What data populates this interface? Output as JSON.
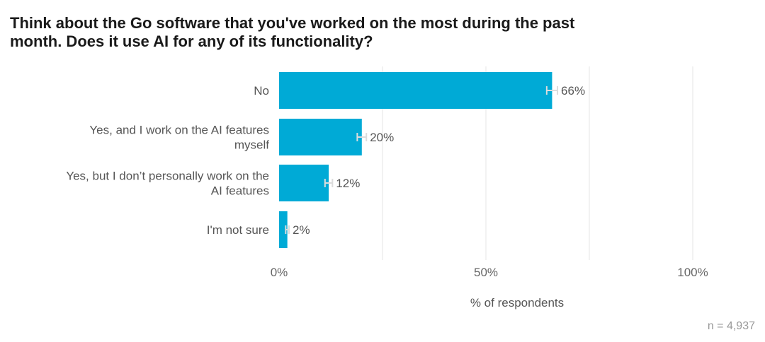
{
  "chart_data": {
    "type": "bar",
    "orientation": "horizontal",
    "title_lines": [
      "Think about the Go software that you've worked on the most during the past",
      "month. Does it use AI for any of its functionality?"
    ],
    "categories": [
      [
        "No"
      ],
      [
        "Yes, and I work on the AI features",
        "myself"
      ],
      [
        "Yes, but I don’t personally work on the",
        "AI features"
      ],
      [
        "I'm not sure"
      ]
    ],
    "values": [
      66,
      20,
      12,
      2
    ],
    "value_labels": [
      "66%",
      "20%",
      "12%",
      "2%"
    ],
    "error_half_width": [
      1.3,
      1.1,
      0.9,
      0.4
    ],
    "xlim": [
      0,
      100
    ],
    "xticks": [
      0,
      50,
      100
    ],
    "xtick_labels": [
      "0%",
      "50%",
      "100%"
    ],
    "gridlines": [
      25,
      50,
      75,
      100
    ],
    "xlabel": "% of respondents",
    "note": "n = 4,937",
    "bar_color": "#00aad6",
    "grid_color": "#e4e4e4",
    "error_color": "#dcdcdc"
  }
}
